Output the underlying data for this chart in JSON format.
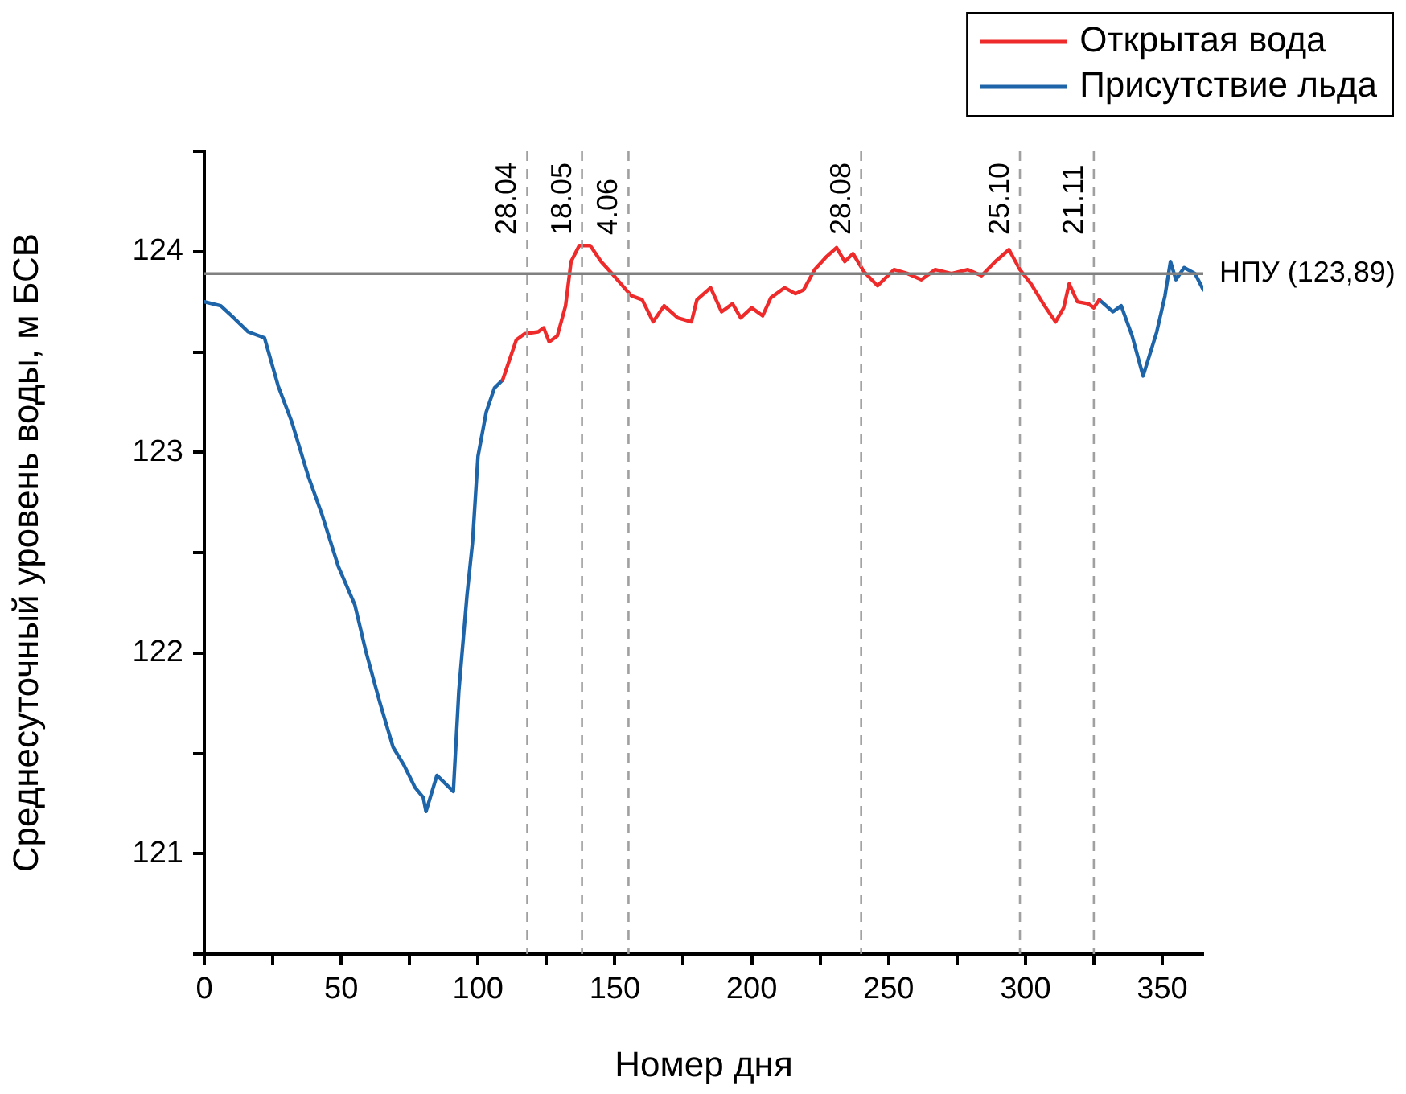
{
  "chart_data": {
    "type": "line",
    "xlabel": "Номер дня",
    "ylabel": "Среднесуточный уровень воды, м БСВ",
    "xlim": [
      0,
      365
    ],
    "xticks": [
      0,
      {
        "value": 25,
        "label": null
      },
      50,
      {
        "value": 75,
        "label": null
      },
      100,
      {
        "value": 125,
        "label": null
      },
      150,
      {
        "value": 175,
        "label": null
      },
      200,
      {
        "value": 225,
        "label": null
      },
      250,
      {
        "value": 275,
        "label": null
      },
      300,
      {
        "value": 325,
        "label": null
      },
      350
    ],
    "ylim": [
      120.5,
      124.5
    ],
    "yticks": [
      {
        "value": 120.5,
        "label": null
      },
      121,
      {
        "value": 121.5,
        "label": null
      },
      122,
      {
        "value": 122.5,
        "label": null
      },
      123,
      {
        "value": 123.5,
        "label": null
      },
      124,
      {
        "value": 124.5,
        "label": null
      }
    ],
    "grid": false,
    "legend": "top right",
    "marker": "none",
    "line_style": "solid",
    "series": [
      {
        "name": "Открытая вода",
        "color": "#ee2a2a",
        "x": [
          109,
          114,
          117,
          122,
          124,
          126,
          129,
          132,
          134,
          137,
          141,
          145,
          149,
          156,
          160,
          164,
          168,
          173,
          178,
          180,
          185,
          189,
          193,
          196,
          200,
          204,
          207,
          212,
          216,
          219,
          223,
          227,
          231,
          234,
          237,
          241,
          246,
          252,
          257,
          262,
          267,
          273,
          279,
          284,
          289,
          294,
          298,
          302,
          307,
          311,
          314,
          316,
          319,
          323,
          325,
          327
        ],
        "values": [
          123.36,
          123.56,
          123.59,
          123.6,
          123.62,
          123.55,
          123.58,
          123.73,
          123.95,
          124.03,
          124.03,
          123.95,
          123.89,
          123.78,
          123.76,
          123.65,
          123.73,
          123.67,
          123.65,
          123.76,
          123.82,
          123.7,
          123.74,
          123.67,
          123.72,
          123.68,
          123.77,
          123.82,
          123.79,
          123.81,
          123.91,
          123.97,
          124.02,
          123.95,
          123.99,
          123.9,
          123.83,
          123.91,
          123.89,
          123.86,
          123.91,
          123.89,
          123.91,
          123.88,
          123.95,
          124.01,
          123.91,
          123.84,
          123.73,
          123.65,
          123.72,
          123.84,
          123.75,
          123.74,
          123.72,
          123.76
        ]
      },
      {
        "name": "Присутствие льда",
        "color": "#1e64a8",
        "x": [
          0,
          6,
          10,
          16,
          22,
          27,
          32,
          38,
          43,
          49,
          55,
          59,
          64,
          69,
          73,
          77,
          80,
          81,
          85,
          91,
          93,
          96,
          98,
          100,
          103,
          106,
          109,
          200,
          327,
          332,
          335,
          339,
          343,
          348,
          351,
          353,
          355,
          358,
          362,
          365
        ],
        "values": [
          123.75,
          123.73,
          123.68,
          123.6,
          123.57,
          123.33,
          123.15,
          122.88,
          122.69,
          122.43,
          122.24,
          122.01,
          121.76,
          121.53,
          121.44,
          121.33,
          121.28,
          121.21,
          121.39,
          121.31,
          121.81,
          122.29,
          122.55,
          122.98,
          123.2,
          123.32,
          123.36,
          null,
          123.76,
          123.7,
          123.73,
          123.58,
          123.38,
          123.6,
          123.78,
          123.95,
          123.86,
          123.92,
          123.89,
          123.81
        ]
      }
    ],
    "ref_lines": [
      {
        "axis": "y",
        "value": 123.89,
        "label": "НПУ (123,89)",
        "color": "#808080",
        "line_style": "solid"
      },
      {
        "axis": "x",
        "value": 118,
        "color": "#a0a0a0",
        "line_style": "dashed"
      },
      {
        "axis": "x",
        "value": 138,
        "color": "#a0a0a0",
        "line_style": "dashed"
      },
      {
        "axis": "x",
        "value": 155,
        "color": "#a0a0a0",
        "line_style": "dashed"
      },
      {
        "axis": "x",
        "value": 240,
        "color": "#a0a0a0",
        "line_style": "dashed"
      },
      {
        "axis": "x",
        "value": 298,
        "color": "#a0a0a0",
        "line_style": "dashed"
      },
      {
        "axis": "x",
        "value": 325,
        "color": "#a0a0a0",
        "line_style": "dashed"
      }
    ],
    "annotations": [
      {
        "text": "28.04",
        "x": 118
      },
      {
        "text": "18.05",
        "x": 138
      },
      {
        "text": "4.06",
        "x": 155
      },
      {
        "text": "28.08",
        "x": 240
      },
      {
        "text": "25.10",
        "x": 298
      },
      {
        "text": "21.11",
        "x": 325
      }
    ]
  }
}
